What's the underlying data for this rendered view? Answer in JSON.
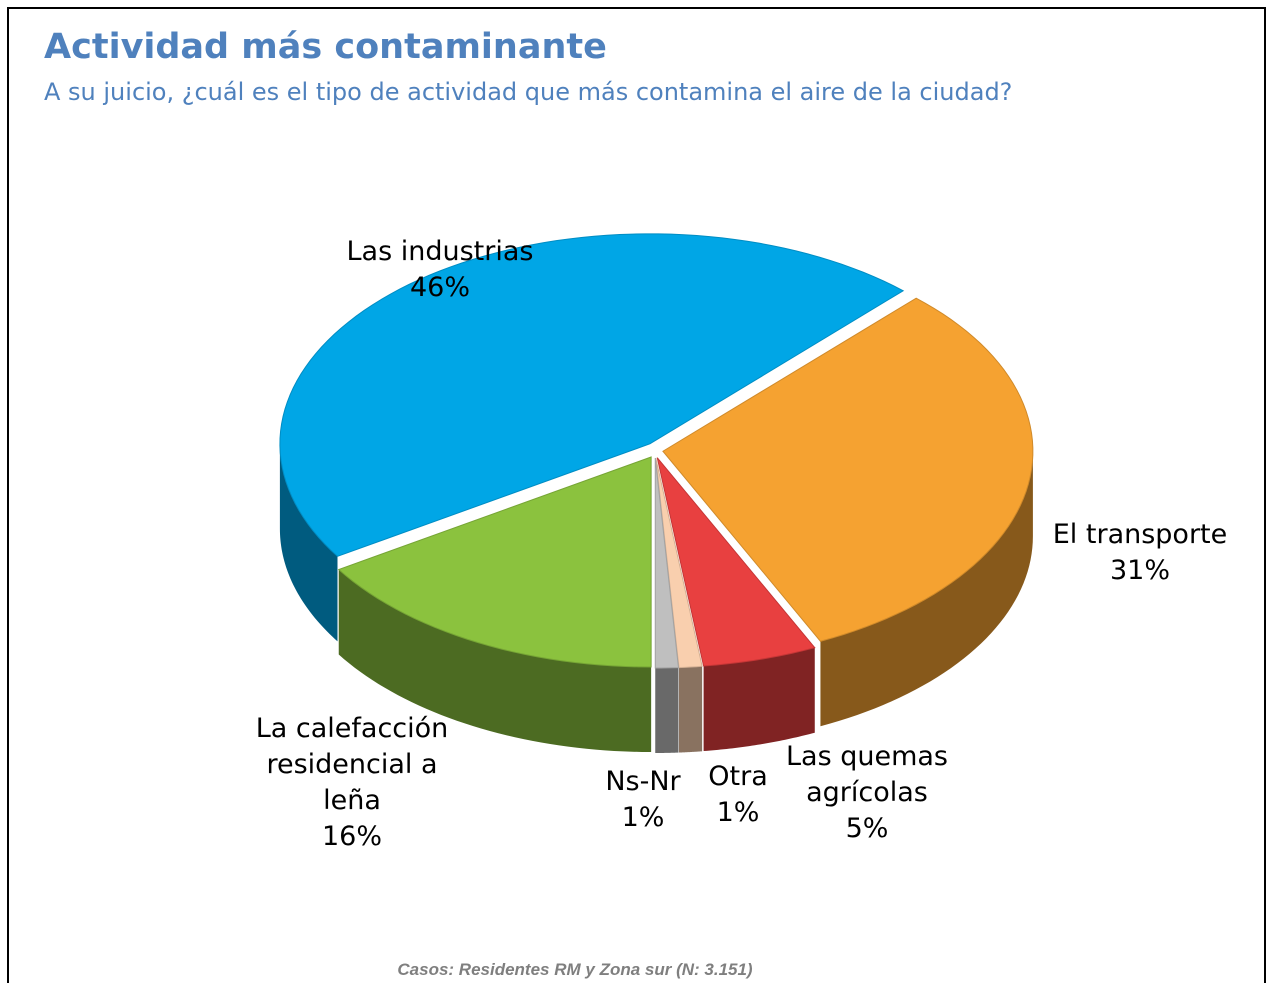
{
  "chart_data": {
    "type": "pie",
    "title": "Actividad más contaminante",
    "subtitle": "A su juicio, ¿cuál es el tipo de actividad que más contamina el aire de la ciudad?",
    "footnote": "Casos: Residentes RM y Zona sur (N: 3.151)",
    "categories": [
      "El transporte",
      "Las quemas agrícolas",
      "Otra",
      "Ns-Nr",
      "La calefacción residencial a leña",
      "Las industrias"
    ],
    "values": [
      31,
      5,
      1,
      1,
      16,
      46
    ],
    "value_labels": [
      "31%",
      "5%",
      "1%",
      "1%",
      "16%",
      "46%"
    ],
    "colors": [
      "#f5a231",
      "#e84040",
      "#f9cfae",
      "#bfbfbf",
      "#8bc23e",
      "#00a6e6"
    ]
  }
}
